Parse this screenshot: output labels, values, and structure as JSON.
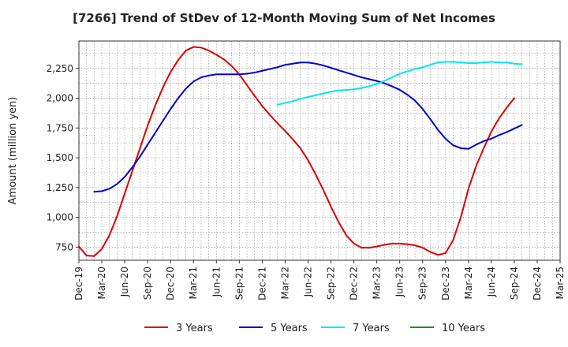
{
  "chart_data": {
    "type": "line",
    "title": "[7266]  Trend of StDev of 12-Month Moving Sum of Net Incomes",
    "xlabel": "",
    "ylabel": "Amount (million yen)",
    "ylim": [
      640,
      2480
    ],
    "yticks": [
      750,
      1000,
      1250,
      1500,
      1750,
      2000,
      2250
    ],
    "ytick_labels": [
      "750",
      "1,000",
      "1,250",
      "1,500",
      "1,750",
      "2,000",
      "2,250"
    ],
    "x_tick_labels": [
      "Dec-19",
      "Mar-20",
      "Jun-20",
      "Sep-20",
      "Dec-20",
      "Mar-21",
      "Jun-21",
      "Sep-21",
      "Dec-21",
      "Mar-22",
      "Jun-22",
      "Sep-22",
      "Dec-22",
      "Mar-23",
      "Jun-23",
      "Sep-23",
      "Dec-23",
      "Mar-24",
      "Jun-24",
      "Sep-24",
      "Dec-24",
      "Mar-25"
    ],
    "grid": true,
    "legend_position": "bottom",
    "series": [
      {
        "name": "3 Years",
        "color": "#dd0000",
        "start_index": 0,
        "values": [
          755,
          680,
          675,
          735,
          850,
          1010,
          1200,
          1390,
          1580,
          1770,
          1940,
          2090,
          2220,
          2320,
          2400,
          2430,
          2425,
          2400,
          2365,
          2325,
          2270,
          2200,
          2110,
          2020,
          1935,
          1860,
          1790,
          1725,
          1655,
          1580,
          1480,
          1360,
          1230,
          1090,
          960,
          850,
          780,
          745,
          745,
          755,
          770,
          780,
          780,
          775,
          765,
          745,
          710,
          685,
          700,
          810,
          1000,
          1240,
          1430,
          1580,
          1720,
          1830,
          1920,
          2000
        ]
      },
      {
        "name": "5 Years",
        "color": "#0000cc",
        "start_index": 2,
        "values": [
          1215,
          1220,
          1240,
          1280,
          1340,
          1420,
          1510,
          1610,
          1710,
          1810,
          1910,
          2000,
          2080,
          2140,
          2175,
          2190,
          2200,
          2200,
          2200,
          2200,
          2205,
          2215,
          2230,
          2245,
          2260,
          2280,
          2290,
          2300,
          2300,
          2290,
          2275,
          2255,
          2235,
          2215,
          2195,
          2175,
          2160,
          2145,
          2125,
          2100,
          2070,
          2030,
          1980,
          1910,
          1825,
          1735,
          1660,
          1605,
          1580,
          1575,
          1610,
          1640,
          1660,
          1690,
          1715,
          1745,
          1775
        ]
      },
      {
        "name": "7 Years",
        "color": "#00e5ee",
        "start_index": 26,
        "values": [
          1945,
          1960,
          1975,
          1995,
          2010,
          2025,
          2040,
          2055,
          2065,
          2070,
          2075,
          2085,
          2100,
          2120,
          2145,
          2175,
          2205,
          2225,
          2245,
          2260,
          2280,
          2300,
          2305,
          2305,
          2300,
          2295,
          2295,
          2300,
          2305,
          2300,
          2300,
          2290,
          2285
        ]
      },
      {
        "name": "10 Years",
        "color": "#228b22",
        "start_index": 0,
        "values": []
      }
    ]
  }
}
